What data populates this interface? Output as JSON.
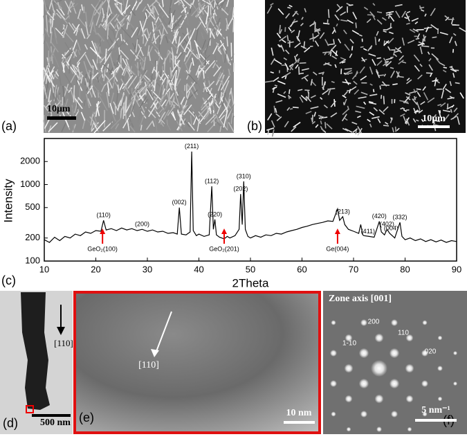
{
  "panels": {
    "a": {
      "label": "(a)",
      "scale": "10μm"
    },
    "b": {
      "label": "(b)",
      "scale": "10μm"
    },
    "c": {
      "label": "(c)"
    },
    "d": {
      "label": "(d)",
      "direction": "[110]",
      "scale": "500 nm"
    },
    "e": {
      "label": "(e)",
      "direction": "[110]",
      "scale": "10 nm"
    },
    "f": {
      "label": "(f)",
      "zone": "Zone axis [001]",
      "spots": [
        "200",
        "110",
        "1-10",
        "020"
      ],
      "scale": "5 nm⁻¹"
    }
  },
  "chart_data": {
    "type": "line",
    "x_label": "2Theta",
    "y_label": "Intensity",
    "log_y": true,
    "color": "#000000",
    "xlim": [
      10,
      90
    ],
    "xticks": [
      10,
      20,
      30,
      40,
      50,
      60,
      70,
      80,
      90
    ],
    "ylim": [
      100,
      4000
    ],
    "yticks": [
      100,
      200,
      500,
      1000,
      2000
    ],
    "x": [
      10,
      11,
      12,
      13,
      14,
      15,
      16,
      17,
      18,
      19,
      20,
      21,
      21.5,
      22,
      23,
      24,
      25,
      26,
      27,
      28,
      29,
      30,
      31,
      32,
      33,
      34,
      35,
      35.8,
      36.2,
      36.6,
      37.5,
      38.3,
      38.6,
      38.9,
      39.5,
      40,
      41,
      42,
      42.5,
      42.8,
      43.1,
      43.4,
      44,
      44.9,
      45.5,
      46,
      47,
      47.8,
      48.1,
      48.4,
      48.7,
      49,
      49.5,
      50,
      51,
      52,
      53,
      54,
      55,
      56,
      57,
      58,
      59,
      60,
      61,
      62,
      63,
      64,
      65,
      66,
      66.9,
      67.3,
      67.9,
      68.3,
      69,
      70,
      71,
      71.4,
      71.8,
      72,
      73,
      74,
      75,
      75.4,
      76,
      76.5,
      77,
      78,
      79,
      79.4,
      80,
      81,
      82,
      83,
      84,
      85,
      86,
      87,
      88,
      89,
      90
    ],
    "values": [
      190,
      175,
      205,
      185,
      210,
      200,
      225,
      215,
      240,
      230,
      250,
      245,
      340,
      255,
      265,
      250,
      270,
      255,
      265,
      250,
      260,
      245,
      255,
      240,
      245,
      230,
      235,
      225,
      500,
      225,
      220,
      240,
      2700,
      250,
      215,
      225,
      210,
      220,
      950,
      260,
      350,
      220,
      205,
      195,
      210,
      200,
      215,
      260,
      750,
      300,
      1100,
      260,
      210,
      200,
      215,
      205,
      220,
      215,
      230,
      225,
      240,
      250,
      260,
      275,
      285,
      300,
      310,
      320,
      335,
      330,
      480,
      340,
      380,
      300,
      260,
      245,
      230,
      300,
      220,
      215,
      210,
      205,
      330,
      240,
      220,
      260,
      230,
      200,
      320,
      210,
      190,
      200,
      185,
      195,
      180,
      190,
      178,
      188,
      175,
      185,
      180
    ],
    "annotations": [
      {
        "text": "(110)",
        "x": 21.5
      },
      {
        "text": "(200)",
        "x": 29
      },
      {
        "text": "(002)",
        "x": 36.2
      },
      {
        "text": "(211)",
        "x": 38.6
      },
      {
        "text": "(112)",
        "x": 42.5
      },
      {
        "text": "(220)",
        "x": 43.1
      },
      {
        "text": "(202)",
        "x": 48.1
      },
      {
        "text": "(310)",
        "x": 48.7
      },
      {
        "text": "(213)",
        "x": 67.9
      },
      {
        "text": "(411)",
        "x": 72.8
      },
      {
        "text": "(420)",
        "x": 75
      },
      {
        "text": "(402)",
        "x": 76.5
      },
      {
        "text": "(004)",
        "x": 77.3
      },
      {
        "text": "(332)",
        "x": 79
      }
    ],
    "markers": [
      {
        "text": "GeO₂(100)",
        "x": 21.3
      },
      {
        "text": "GeO₂(201)",
        "x": 44.9
      },
      {
        "text": "Ge(004)",
        "x": 66.9
      }
    ]
  }
}
